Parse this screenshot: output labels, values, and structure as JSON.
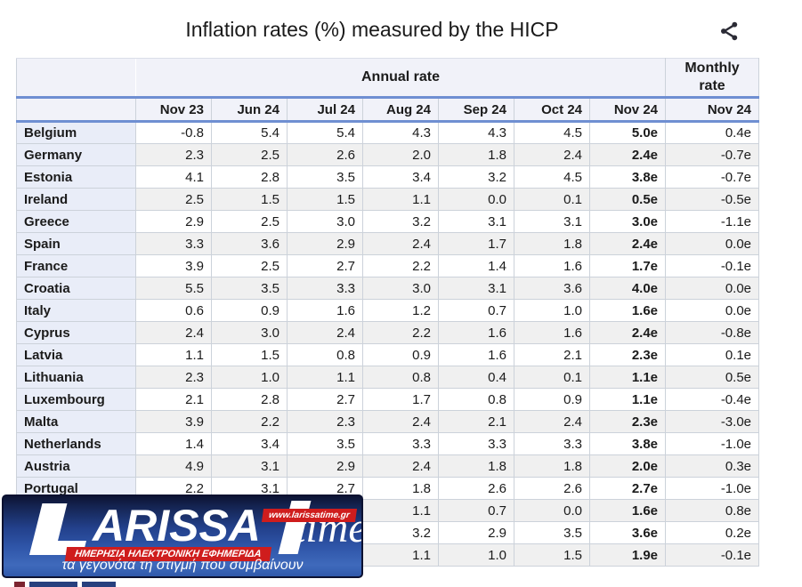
{
  "header": {
    "title": "Inflation rates (%) measured by the HICP",
    "share_icon": "share"
  },
  "table": {
    "group_headers": [
      {
        "label": "",
        "span": 1
      },
      {
        "label": "Annual rate",
        "span": 7
      },
      {
        "label": "Monthly rate",
        "span": 1
      }
    ],
    "columns": [
      "",
      "Nov 23",
      "Jun 24",
      "Jul 24",
      "Aug 24",
      "Sep 24",
      "Oct 24",
      "Nov 24",
      "Nov 24"
    ],
    "rows": [
      {
        "country": "Belgium",
        "values": [
          "-0.8",
          "5.4",
          "5.4",
          "4.3",
          "4.3",
          "4.5",
          "5.0e",
          "0.4e"
        ]
      },
      {
        "country": "Germany",
        "values": [
          "2.3",
          "2.5",
          "2.6",
          "2.0",
          "1.8",
          "2.4",
          "2.4e",
          "-0.7e"
        ]
      },
      {
        "country": "Estonia",
        "values": [
          "4.1",
          "2.8",
          "3.5",
          "3.4",
          "3.2",
          "4.5",
          "3.8e",
          "-0.7e"
        ]
      },
      {
        "country": "Ireland",
        "values": [
          "2.5",
          "1.5",
          "1.5",
          "1.1",
          "0.0",
          "0.1",
          "0.5e",
          "-0.5e"
        ]
      },
      {
        "country": "Greece",
        "values": [
          "2.9",
          "2.5",
          "3.0",
          "3.2",
          "3.1",
          "3.1",
          "3.0e",
          "-1.1e"
        ]
      },
      {
        "country": "Spain",
        "values": [
          "3.3",
          "3.6",
          "2.9",
          "2.4",
          "1.7",
          "1.8",
          "2.4e",
          "0.0e"
        ]
      },
      {
        "country": "France",
        "values": [
          "3.9",
          "2.5",
          "2.7",
          "2.2",
          "1.4",
          "1.6",
          "1.7e",
          "-0.1e"
        ]
      },
      {
        "country": "Croatia",
        "values": [
          "5.5",
          "3.5",
          "3.3",
          "3.0",
          "3.1",
          "3.6",
          "4.0e",
          "0.0e"
        ]
      },
      {
        "country": "Italy",
        "values": [
          "0.6",
          "0.9",
          "1.6",
          "1.2",
          "0.7",
          "1.0",
          "1.6e",
          "0.0e"
        ]
      },
      {
        "country": "Cyprus",
        "values": [
          "2.4",
          "3.0",
          "2.4",
          "2.2",
          "1.6",
          "1.6",
          "2.4e",
          "-0.8e"
        ]
      },
      {
        "country": "Latvia",
        "values": [
          "1.1",
          "1.5",
          "0.8",
          "0.9",
          "1.6",
          "2.1",
          "2.3e",
          "0.1e"
        ]
      },
      {
        "country": "Lithuania",
        "values": [
          "2.3",
          "1.0",
          "1.1",
          "0.8",
          "0.4",
          "0.1",
          "1.1e",
          "0.5e"
        ]
      },
      {
        "country": "Luxembourg",
        "values": [
          "2.1",
          "2.8",
          "2.7",
          "1.7",
          "0.8",
          "0.9",
          "1.1e",
          "-0.4e"
        ]
      },
      {
        "country": "Malta",
        "values": [
          "3.9",
          "2.2",
          "2.3",
          "2.4",
          "2.1",
          "2.4",
          "2.3e",
          "-3.0e"
        ]
      },
      {
        "country": "Netherlands",
        "values": [
          "1.4",
          "3.4",
          "3.5",
          "3.3",
          "3.3",
          "3.3",
          "3.8e",
          "-1.0e"
        ]
      },
      {
        "country": "Austria",
        "values": [
          "4.9",
          "3.1",
          "2.9",
          "2.4",
          "1.8",
          "1.8",
          "2.0e",
          "0.3e"
        ]
      },
      {
        "country": "Portugal",
        "values": [
          "2.2",
          "3.1",
          "2.7",
          "1.8",
          "2.6",
          "2.6",
          "2.7e",
          "-1.0e"
        ]
      },
      {
        "country": "",
        "values": [
          "",
          "",
          "",
          "1.1",
          "0.7",
          "0.0",
          "1.6e",
          "0.8e"
        ]
      },
      {
        "country": "",
        "values": [
          "",
          "",
          "",
          "3.2",
          "2.9",
          "3.5",
          "3.6e",
          "0.2e"
        ]
      },
      {
        "country": "",
        "values": [
          "",
          "",
          "",
          "1.1",
          "1.0",
          "1.5",
          "1.9e",
          "-0.1e"
        ]
      }
    ]
  },
  "watermark": {
    "brand_l": "L",
    "brand_main": "ARISSA",
    "brand_time": "time",
    "url_badge": "www.larissatime.gr",
    "red_strip": "ΗΜΕΡΗΣΙΑ ΗΛΕΚΤΡΟΝΙΚΗ ΕΦΗΜΕΡΙΔΑ",
    "tagline": "τα γεγονότα τη στιγμή που συμβαίνουν"
  },
  "colors": {
    "blue_rule": "#6f8fd2",
    "header_bg": "#f1f2f9",
    "country_col_bg": "#e9edf8",
    "stripe_bg": "#f0f0f0",
    "cell_border": "#ccd2da",
    "banner_red": "#cf1d1d",
    "banner_blue": "#2e54a7",
    "text": "#1b1b1b"
  }
}
